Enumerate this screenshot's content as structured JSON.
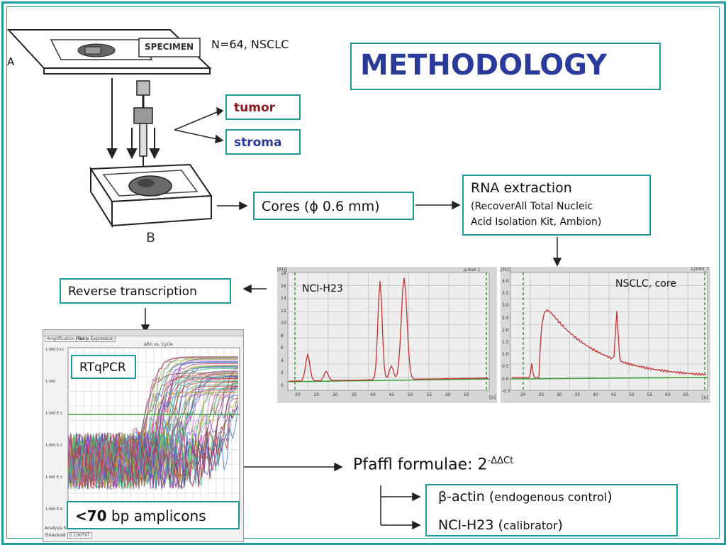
{
  "header": {
    "title": "METHODOLOGY",
    "cohort": "N=64, NSCLC"
  },
  "illustration": {
    "specimen_label": "SPECIMEN",
    "panel_a": "A",
    "panel_b": "B"
  },
  "regions": {
    "tumor": "tumor",
    "stroma": "stroma"
  },
  "steps": {
    "cores": "Cores (ϕ 0.6 mm)",
    "rna_title": "RNA extraction",
    "rna_line1": "(RecoverAll Total Nucleic",
    "rna_line2": "Acid Isolation Kit, Ambion)",
    "rt": "Reverse transcription",
    "rtqpcr": "RTqPCR",
    "amplicons_bold": "<70",
    "amplicons_rest": " bp amplicons",
    "pfaffl": "Pfaffl formulae: 2",
    "pfaffl_exp": "-ΔΔCt",
    "actin_main": "β-actin (",
    "actin_small": "endogenous control",
    "actin_close": ")",
    "nci_main": "NCI-H23 (",
    "nci_small": "calibrator",
    "nci_close": ")"
  },
  "electropherograms": {
    "left_label": "NCI-H23",
    "right_label": "NSCLC, core",
    "left_corner": "Jurkat 1",
    "right_corner": "12099_T",
    "y_unit": "[FU]",
    "x_unit": "[s]",
    "left_yticks": [
      "18",
      "16",
      "14",
      "12",
      "10",
      "8",
      "6",
      "4",
      "2",
      "0"
    ],
    "right_yticks": [
      "4.0",
      "3.5",
      "3.0",
      "2.5",
      "2.0",
      "1.5",
      "1.0",
      "0.5",
      "0.0",
      "-0.5"
    ],
    "xticks": [
      "20",
      "25",
      "30",
      "35",
      "40",
      "45",
      "50",
      "55",
      "60",
      "65"
    ]
  },
  "qpcr_window": {
    "tab1": "Amplification Plot",
    "tab2": "Gene Expression",
    "plot_title": "ΔRn vs. Cycle",
    "yticks": [
      "1.000 E+1",
      "1.000",
      "1.000 E-1",
      "1.000 E-2",
      "1.000 E-3",
      "1.000 E-4"
    ],
    "threshold_label": "Threshold",
    "threshold_value": "0.106797",
    "footer": "Analysis Se"
  },
  "colors": {
    "accent": "#1d9a9a",
    "tumor": "#8b1a1a",
    "stroma": "#2a3a9a",
    "title": "#2a3a9a",
    "trace": "#c83030"
  }
}
